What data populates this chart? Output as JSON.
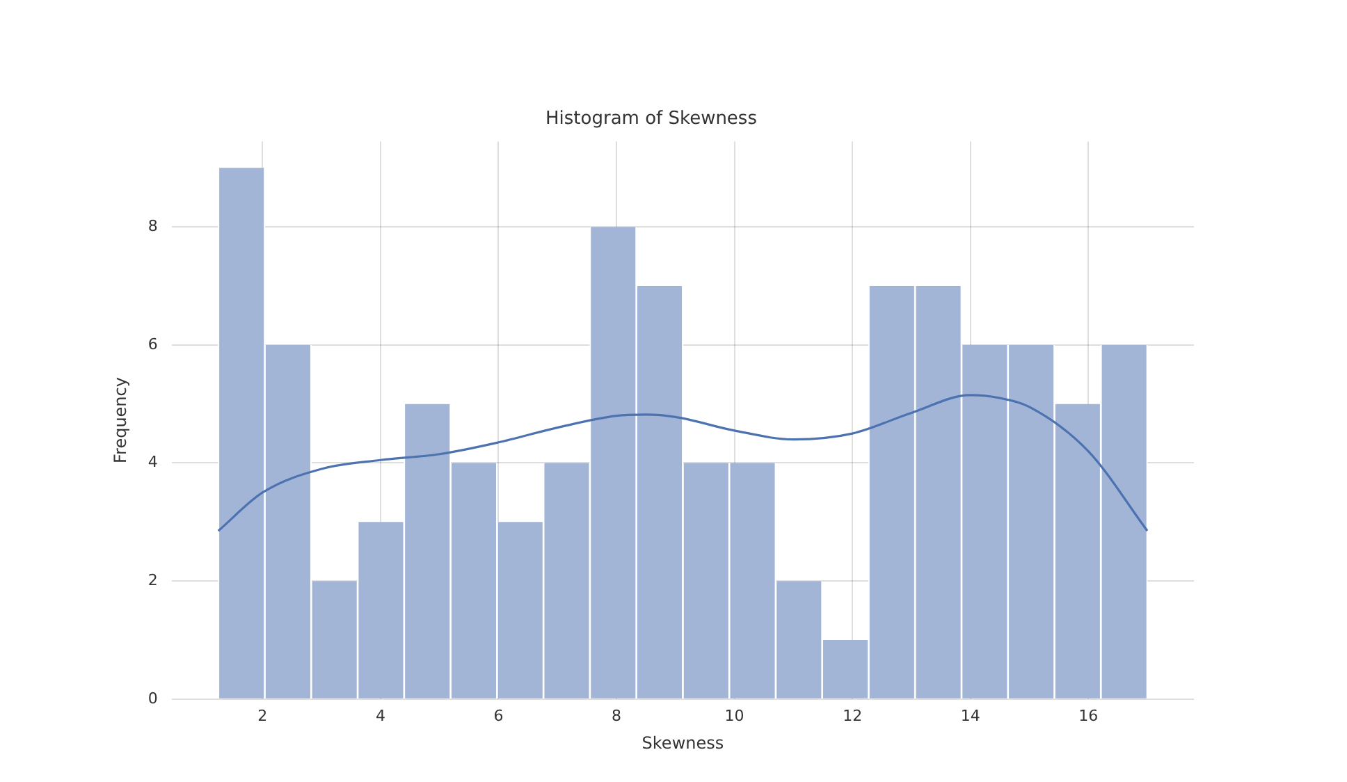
{
  "chart_data": {
    "type": "histogram",
    "title": "Histogram of Skewness",
    "xlabel": "Skewness",
    "ylabel": "Frequency",
    "bins": [
      1.25,
      2.0375,
      2.825,
      3.6125,
      4.4,
      5.1875,
      5.975,
      6.7625,
      7.55,
      8.3375,
      9.125,
      9.9125,
      10.7,
      11.4875,
      12.275,
      13.0625,
      13.85,
      14.6375,
      15.425,
      16.2125,
      17.0
    ],
    "values": [
      9,
      6,
      2,
      3,
      5,
      4,
      3,
      4,
      8,
      7,
      4,
      4,
      2,
      1,
      7,
      7,
      6,
      6,
      5,
      6
    ],
    "color": "#a2b5d7",
    "series": [
      {
        "type": "line",
        "color": "#4c72b0",
        "x": [
          1.25,
          2,
          3,
          4,
          5,
          6,
          7,
          8,
          8.5,
          9,
          10,
          11,
          12,
          13,
          14,
          14.5,
          15,
          16,
          17
        ],
        "values": [
          2.85,
          3.5,
          3.9,
          4.05,
          4.15,
          4.35,
          4.6,
          4.8,
          4.82,
          4.78,
          4.55,
          4.4,
          4.5,
          4.85,
          5.15,
          5.1,
          4.95,
          4.2,
          2.85
        ]
      }
    ],
    "xlim": [
      0.46,
      17.79
    ],
    "xticks": [
      2,
      4,
      6,
      8,
      10,
      12,
      14,
      16
    ],
    "ylim": [
      0,
      9.45
    ],
    "yticks": [
      0,
      2,
      4,
      6,
      8
    ],
    "grid": true,
    "legend": false,
    "marker": "none"
  }
}
